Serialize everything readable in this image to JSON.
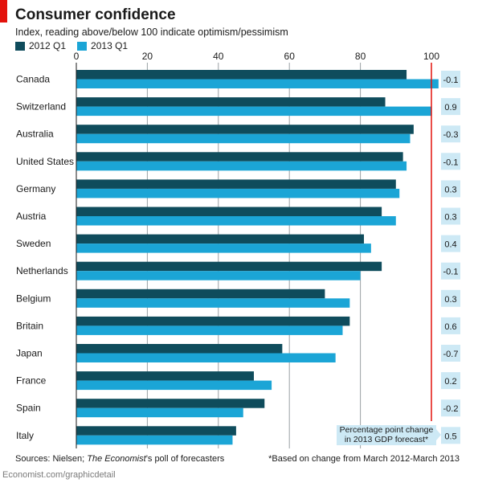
{
  "title": "Consumer confidence",
  "subtitle": "Index, reading above/below 100 indicate optimism/pessimism",
  "footer": {
    "source_prefix": "Sources: Nielsen; ",
    "source_italic": "The Economist",
    "source_suffix": "’s poll of forecasters",
    "note": "*Based on change from March 2012-March 2013",
    "credit": "Economist.com/graphicdetail"
  },
  "annotation": {
    "line1": "Percentage point change",
    "line2": "in 2013 GDP forecast*"
  },
  "colors": {
    "series_2012": "#0f4c5c",
    "series_2013": "#1ba5d6",
    "reference_line": "#e3120b",
    "change_box": "#cde9f5"
  },
  "chart_data": {
    "type": "bar",
    "orientation": "horizontal",
    "categories": [
      "Canada",
      "Switzerland",
      "Australia",
      "United States",
      "Germany",
      "Austria",
      "Sweden",
      "Netherlands",
      "Belgium",
      "Britain",
      "Japan",
      "France",
      "Spain",
      "Italy"
    ],
    "series": [
      {
        "name": "2012 Q1",
        "values": [
          93,
          87,
          95,
          92,
          90,
          86,
          81,
          86,
          70,
          77,
          58,
          50,
          53,
          45
        ]
      },
      {
        "name": "2013 Q1",
        "values": [
          102,
          100,
          94,
          93,
          91,
          90,
          83,
          80,
          77,
          75,
          73,
          55,
          47,
          44
        ]
      }
    ],
    "gdp_forecast_change": [
      "-0.1",
      "0.9",
      "-0.3",
      "-0.1",
      "0.3",
      "0.3",
      "0.4",
      "-0.1",
      "0.3",
      "0.6",
      "-0.7",
      "0.2",
      "-0.2",
      "0.5"
    ],
    "xlim": [
      0,
      100
    ],
    "xticks": [
      0,
      20,
      40,
      60,
      80,
      100
    ],
    "reference_value": 100,
    "legend_position": "top-left",
    "grid": true
  }
}
